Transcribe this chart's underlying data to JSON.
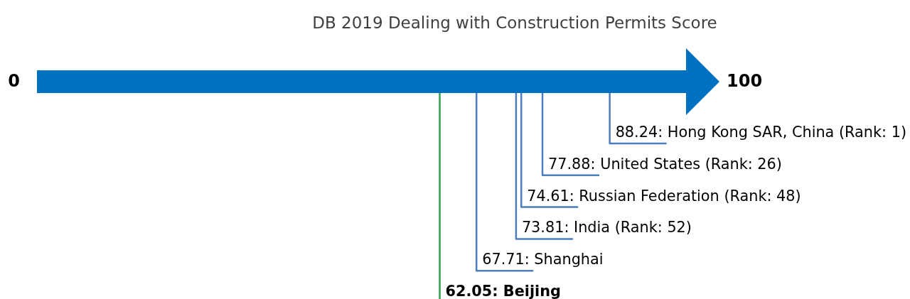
{
  "chart_data": {
    "type": "other",
    "title": "DB 2019 Dealing with Construction Permits Score",
    "categories": [
      "Hong Kong SAR, China (Rank: 1)",
      "United States (Rank: 26)",
      "Russian Federation (Rank: 48)",
      "India (Rank: 52)",
      "Shanghai",
      "Beijing"
    ],
    "values": [
      88.24,
      77.88,
      74.61,
      73.81,
      67.71,
      62.05
    ],
    "value_labels": [
      "88.24:",
      "77.88:",
      "74.61:",
      "73.81:",
      "67.71:",
      "62.05:"
    ],
    "colors": [
      "#4a7ebf",
      "#4a7ebf",
      "#4a7ebf",
      "#4a7ebf",
      "#4a7ebf",
      "#2aa34a"
    ],
    "annotations": [
      "0",
      "100"
    ]
  }
}
